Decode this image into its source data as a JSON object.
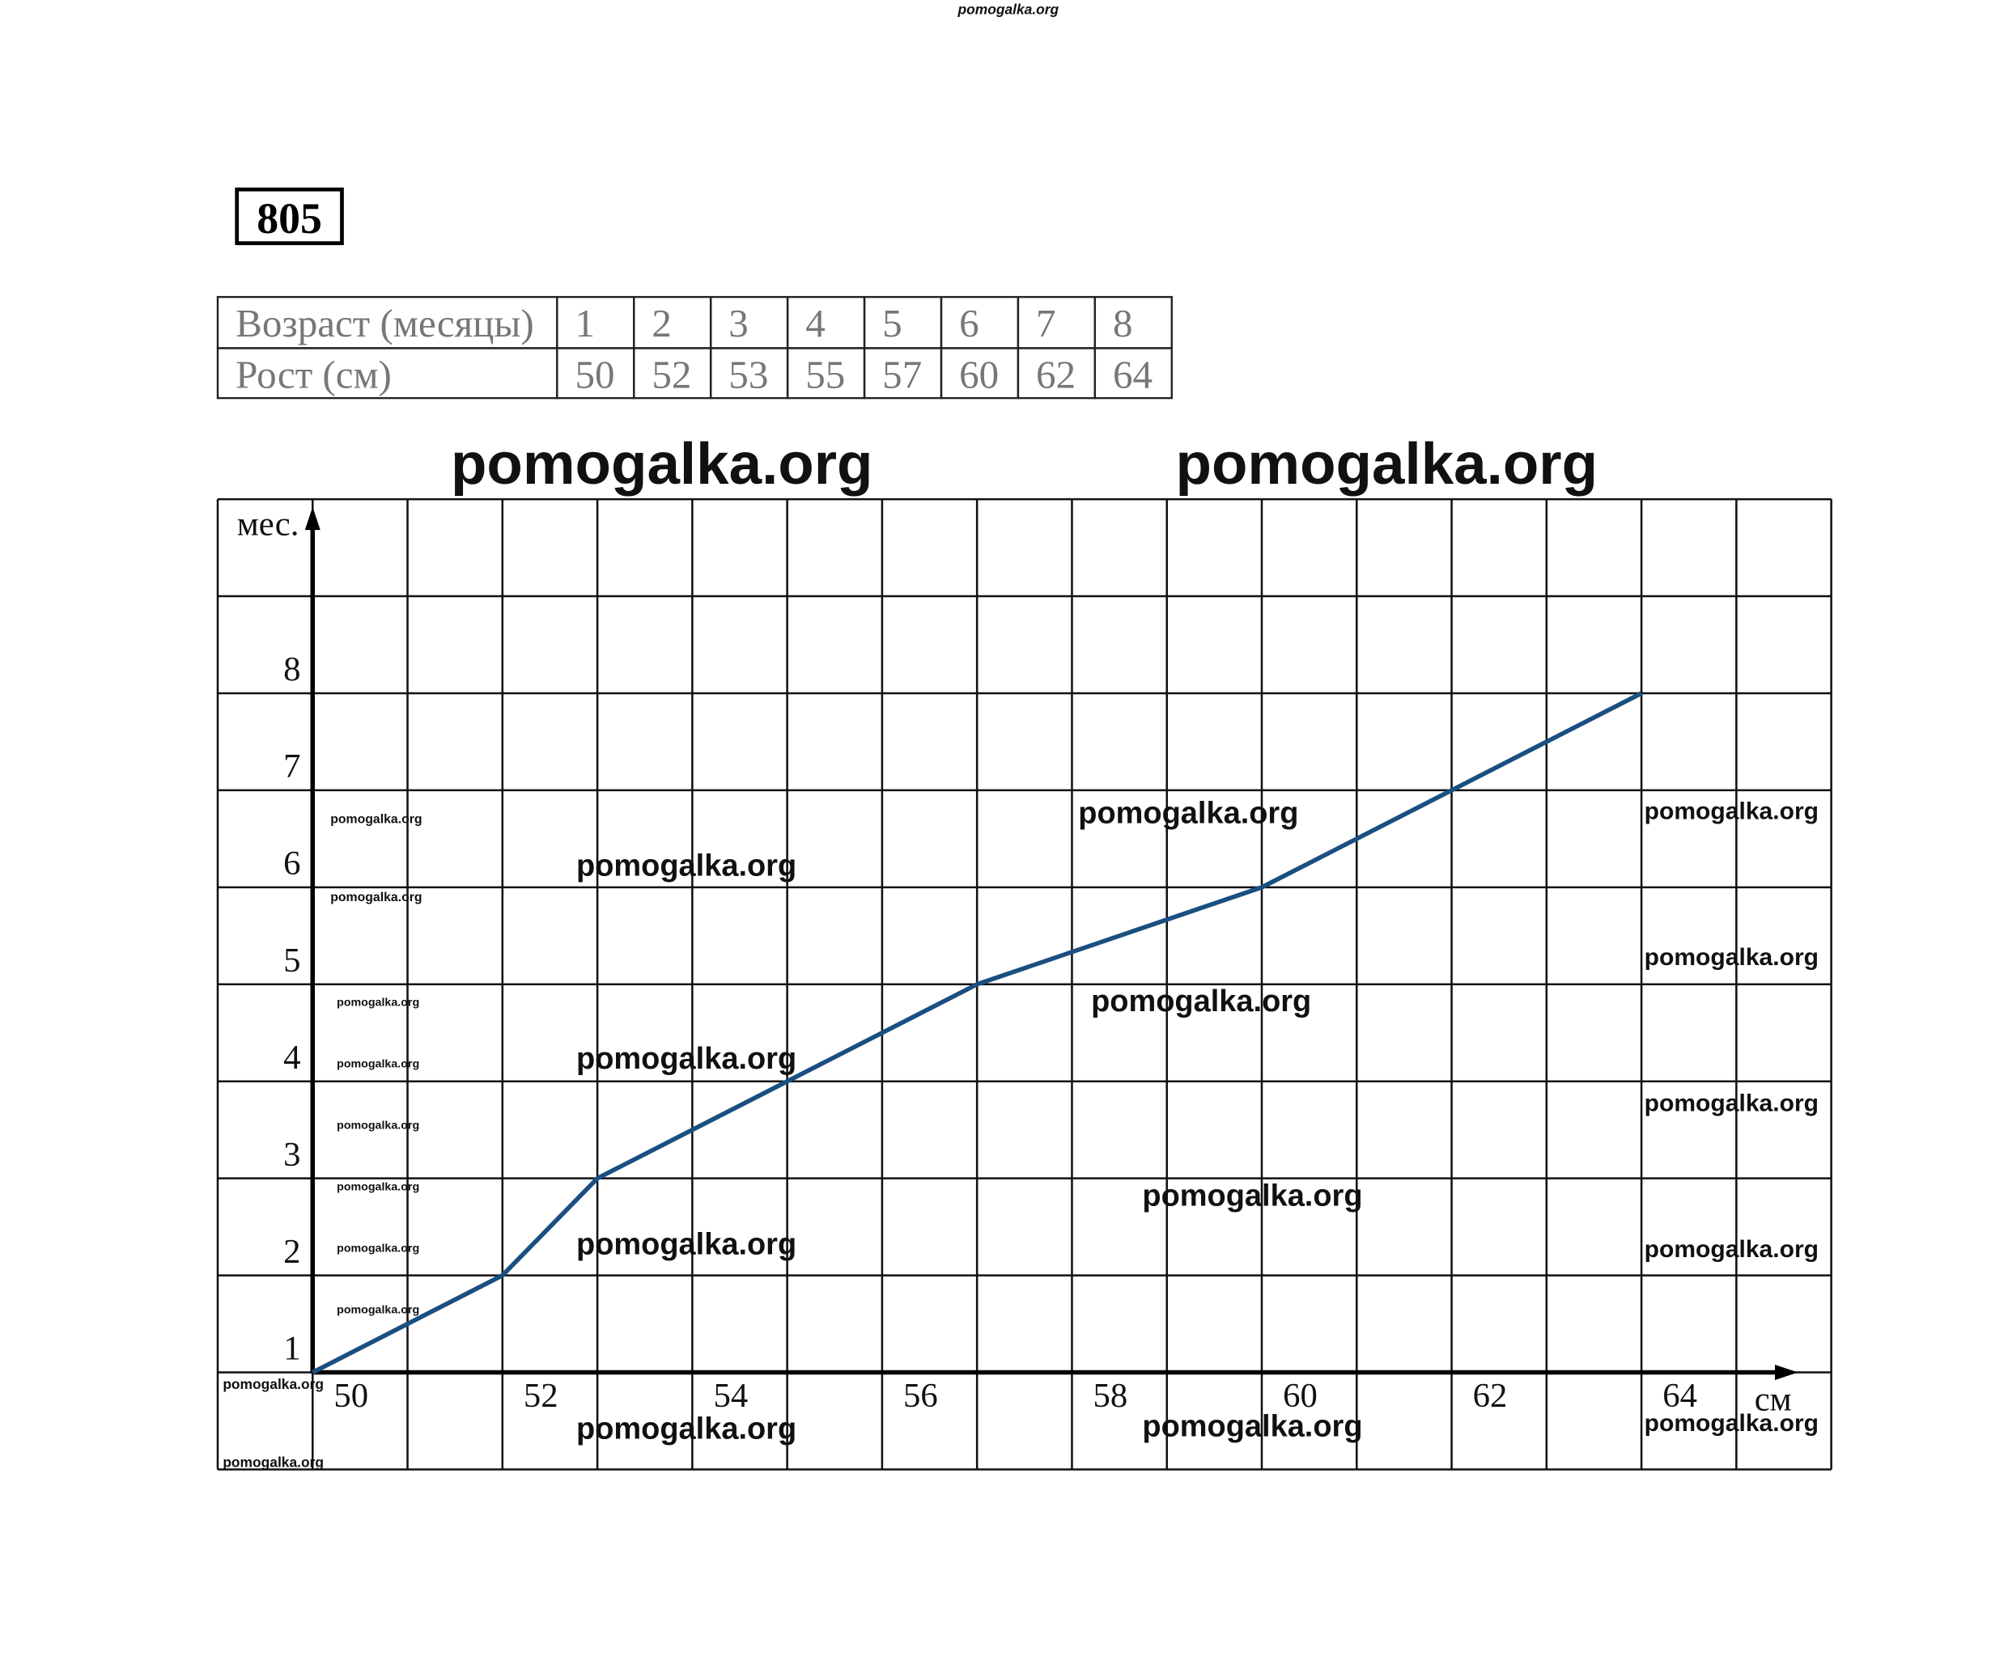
{
  "problem_number": "805",
  "table": {
    "rows": [
      [
        "Возраст (месяцы)",
        1,
        2,
        3,
        4,
        5,
        6,
        7,
        8
      ],
      [
        "Рост (см)",
        50,
        52,
        53,
        55,
        57,
        60,
        62,
        64
      ]
    ]
  },
  "chart_data": {
    "type": "line",
    "x_label": "см",
    "y_label": "мес.",
    "x": [
      50,
      52,
      53,
      55,
      57,
      60,
      62,
      64
    ],
    "series": [
      {
        "color": "#1a4f80",
        "values": [
          1,
          2,
          3,
          4,
          5,
          6,
          7,
          8
        ]
      }
    ],
    "xlim": [
      49,
      66
    ],
    "ylim": [
      0,
      10
    ],
    "xticks": [
      50,
      52,
      54,
      56,
      58,
      60,
      62,
      64
    ],
    "yticks": [
      1,
      2,
      3,
      4,
      5,
      6,
      7,
      8
    ],
    "grid": true
  },
  "watermarks": [
    "pomogalka.org",
    "pomogalka.org",
    "pomogalka.org",
    "pomogalka.org",
    "pomogalka.org",
    "pomogalka.org",
    "pomogalka.org",
    "pomogalka.org",
    "pomogalka.org",
    "pomogalka.org",
    "pomogalka.org",
    "pomogalka.org",
    "pomogalka.org",
    "pomogalka.org",
    "pomogalka.org",
    "pomogalka.org",
    "pomogalka.org",
    "pomogalka.org",
    "pomogalka.org",
    "pomogalka.org",
    "pomogalka.org",
    "pomogalka.org",
    "pomogalka.org",
    "pomogalka.org",
    "pomogalka.org",
    "pomogalka.org"
  ]
}
